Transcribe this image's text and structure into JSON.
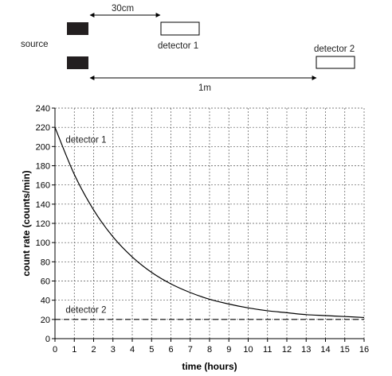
{
  "diagram": {
    "source_label": "source",
    "detector1_label": "detector 1",
    "detector2_label": "detector 2",
    "distance_short": "30cm",
    "distance_long": "1m"
  },
  "chart_data": {
    "type": "line",
    "xlabel": "time (hours)",
    "ylabel": "count rate (counts/min)",
    "xlim": [
      0,
      16
    ],
    "ylim": [
      0,
      240
    ],
    "x_ticks": [
      0,
      1,
      2,
      3,
      4,
      5,
      6,
      7,
      8,
      9,
      10,
      11,
      12,
      13,
      14,
      15,
      16
    ],
    "y_ticks": [
      0,
      20,
      40,
      60,
      80,
      100,
      120,
      140,
      160,
      180,
      200,
      220,
      240
    ],
    "grid": true,
    "series": [
      {
        "name": "detector 1",
        "style": "solid",
        "x": [
          0,
          1,
          2,
          3,
          4,
          5,
          6,
          7,
          8,
          9,
          10,
          11,
          12,
          13,
          14,
          15,
          16
        ],
        "y": [
          220,
          171,
          134,
          106,
          85,
          69,
          57,
          48,
          41,
          36,
          32,
          29,
          27,
          25,
          24,
          23,
          22
        ]
      },
      {
        "name": "detector 2",
        "style": "dashed",
        "x": [
          0,
          16
        ],
        "y": [
          20,
          20
        ]
      }
    ]
  }
}
